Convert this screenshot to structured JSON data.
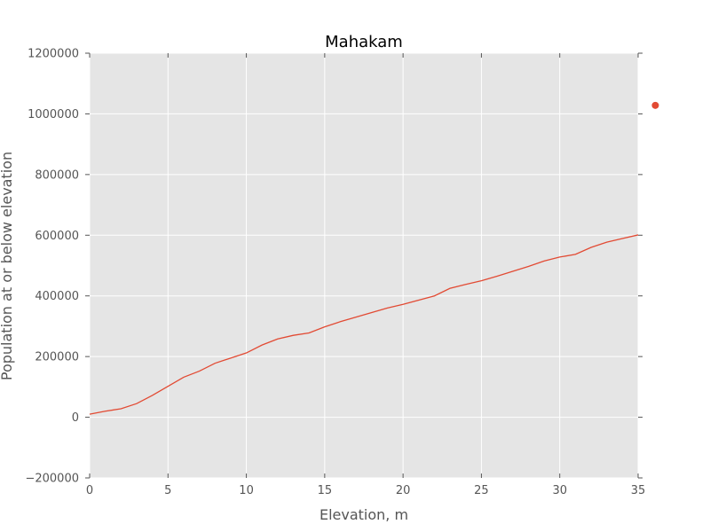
{
  "chart_data": {
    "type": "line",
    "title": "Mahakam",
    "xlabel": "Elevation, m",
    "ylabel": "Population at or below elevation",
    "xlim": [
      0,
      35
    ],
    "ylim": [
      -200000,
      1200000
    ],
    "grid": true,
    "x_ticks": [
      0,
      5,
      10,
      15,
      20,
      25,
      30,
      35
    ],
    "x_tick_labels": [
      "0",
      "5",
      "10",
      "15",
      "20",
      "25",
      "30",
      "35"
    ],
    "y_ticks": [
      -200000,
      0,
      200000,
      400000,
      600000,
      800000,
      1000000,
      1200000
    ],
    "y_tick_labels": [
      "−200000",
      "0",
      "200000",
      "400000",
      "600000",
      "800000",
      "1000000",
      "1200000"
    ],
    "series": [
      {
        "color": "#e24a33",
        "x": [
          0,
          1,
          2,
          3,
          4,
          5,
          6,
          7,
          8,
          9,
          10,
          11,
          12,
          13,
          14,
          15,
          16,
          17,
          18,
          19,
          20,
          21,
          22,
          23,
          24,
          25,
          26,
          27,
          28,
          29,
          30,
          31,
          32,
          33,
          34,
          35
        ],
        "y": [
          10000,
          20000,
          28000,
          45000,
          72000,
          102000,
          132000,
          152000,
          178000,
          195000,
          212000,
          238000,
          258000,
          270000,
          278000,
          298000,
          315000,
          330000,
          345000,
          360000,
          372000,
          386000,
          400000,
          425000,
          438000,
          450000,
          465000,
          481000,
          497000,
          515000,
          528000,
          537000,
          560000,
          577000,
          589000,
          601000
        ]
      }
    ],
    "markers": [
      {
        "x": 36.1,
        "y": 1028000,
        "color": "#e24a33"
      }
    ]
  },
  "style": {
    "plot_background": "#e5e5e5",
    "grid_color": "#ffffff",
    "line_color": "#e24a33"
  }
}
